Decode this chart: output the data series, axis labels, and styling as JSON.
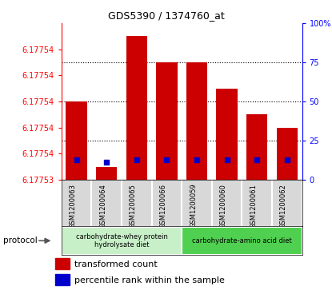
{
  "title": "GDS5390 / 1374760_at",
  "samples": [
    "GSM1200063",
    "GSM1200064",
    "GSM1200065",
    "GSM1200066",
    "GSM1200059",
    "GSM1200060",
    "GSM1200061",
    "GSM1200062"
  ],
  "transformed_counts": [
    6.177536,
    6.177531,
    6.177541,
    6.177539,
    6.177539,
    6.177537,
    6.177535,
    6.177534
  ],
  "percentile_ranks": [
    13,
    11,
    13,
    13,
    13,
    13,
    13,
    13
  ],
  "ylim_left": [
    6.17753,
    6.177542
  ],
  "ylim_right": [
    0,
    100
  ],
  "ytick_vals": [
    6.17753,
    6.177532,
    6.177534,
    6.177536,
    6.177538,
    6.17754,
    6.177542
  ],
  "ytick_labels": [
    "6.17753",
    "6.17754",
    "6.17754",
    "6.17754",
    "6.17754",
    "6.17754",
    ""
  ],
  "yticks_right": [
    0,
    25,
    50,
    75,
    100
  ],
  "grid_pcts": [
    25,
    50,
    75
  ],
  "protocol_groups": [
    {
      "label": "carbohydrate-whey protein\nhydrolysate diet",
      "indices": [
        0,
        1,
        2,
        3
      ],
      "color": "#c8f0c8"
    },
    {
      "label": "carbohydrate-amino acid diet",
      "indices": [
        4,
        5,
        6,
        7
      ],
      "color": "#50d050"
    }
  ],
  "bar_color": "#cc0000",
  "dot_color": "#0000cc",
  "bg_gray": "#d8d8d8",
  "plot_bg": "#ffffff",
  "bar_width": 0.7,
  "title_fontsize": 9,
  "tick_fontsize": 7,
  "label_fontsize": 7,
  "legend_fontsize": 8
}
